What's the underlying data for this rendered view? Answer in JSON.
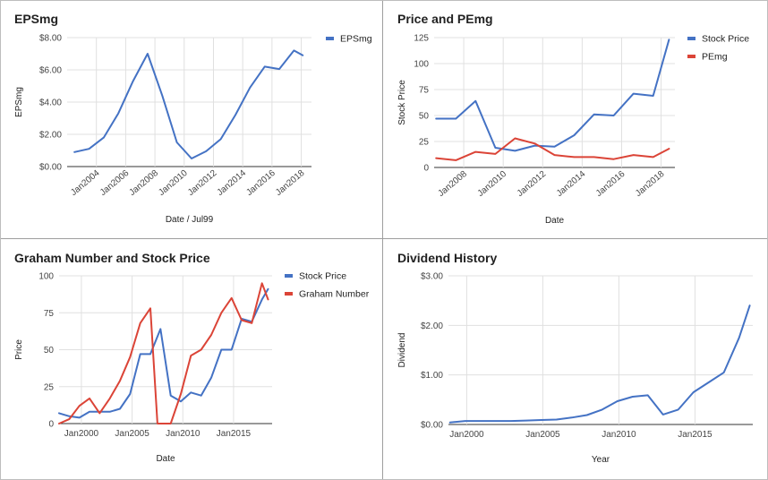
{
  "chart_data": [
    {
      "type": "line",
      "title": "EPSmg",
      "xlabel": "Date / Jul99",
      "ylabel": "EPSmg",
      "y_ticks": [
        "$0.00",
        "$2.00",
        "$4.00",
        "$6.00",
        "$8.00"
      ],
      "ylim": [
        0,
        8
      ],
      "xlim": [
        2002,
        2018.7
      ],
      "x_ticks": [
        "Jan2004",
        "Jan2006",
        "Jan2008",
        "Jan2010",
        "Jan2012",
        "Jan2014",
        "Jan2016",
        "Jan2018"
      ],
      "x_tick_values": [
        2004,
        2006,
        2008,
        2010,
        2012,
        2014,
        2016,
        2018
      ],
      "grid": true,
      "legend": "top-right",
      "series": [
        {
          "name": "EPSmg",
          "color": "#4472C4",
          "x": [
            2002.5,
            2003.5,
            2004.5,
            2005.5,
            2006.5,
            2007.5,
            2008.5,
            2009.5,
            2010.5,
            2011.5,
            2012.5,
            2013.5,
            2014.5,
            2015.5,
            2016.5,
            2017.5,
            2018.1
          ],
          "y": [
            0.9,
            1.1,
            1.8,
            3.3,
            5.3,
            7.0,
            4.4,
            1.5,
            0.5,
            0.95,
            1.7,
            3.2,
            4.9,
            6.2,
            6.05,
            7.2,
            6.9
          ]
        }
      ]
    },
    {
      "type": "line",
      "title": "Price and PEmg",
      "xlabel": "Date",
      "ylabel": "Stock Price",
      "y_ticks": [
        "0",
        "25",
        "50",
        "75",
        "100",
        "125"
      ],
      "ylim": [
        0,
        125
      ],
      "xlim": [
        2006.5,
        2018.7
      ],
      "x_ticks": [
        "Jan2008",
        "Jan2010",
        "Jan2012",
        "Jan2014",
        "Jan2016",
        "Jan2018"
      ],
      "x_tick_values": [
        2008,
        2010,
        2012,
        2014,
        2016,
        2018
      ],
      "grid": true,
      "legend": "top-right",
      "series": [
        {
          "name": "Stock Price",
          "color": "#4472C4",
          "x": [
            2006.6,
            2007.6,
            2008.6,
            2009.6,
            2010.6,
            2011.6,
            2012.6,
            2013.6,
            2014.6,
            2015.6,
            2016.6,
            2017.6,
            2018.4
          ],
          "y": [
            47,
            47,
            64,
            19,
            16,
            21,
            20,
            31,
            51,
            50,
            71,
            69,
            123
          ]
        },
        {
          "name": "PEmg",
          "color": "#DB4437",
          "x": [
            2006.6,
            2007.6,
            2008.6,
            2009.6,
            2010.6,
            2011.6,
            2012.6,
            2013.6,
            2014.6,
            2015.6,
            2016.6,
            2017.6,
            2018.4
          ],
          "y": [
            9,
            7,
            15,
            13,
            28,
            23,
            12,
            10,
            10,
            8,
            12,
            10,
            18
          ]
        }
      ]
    },
    {
      "type": "line",
      "title": "Graham Number and Stock Price",
      "xlabel": "Date",
      "ylabel": "Price",
      "y_ticks": [
        "0",
        "25",
        "50",
        "75",
        "100"
      ],
      "ylim": [
        0,
        100
      ],
      "xlim": [
        1997.8,
        2018.8
      ],
      "x_ticks": [
        "Jan2000",
        "Jan2005",
        "Jan2010",
        "Jan2015"
      ],
      "x_tick_values": [
        2000,
        2005,
        2010,
        2015
      ],
      "grid": true,
      "legend": "top-right",
      "series": [
        {
          "name": "Stock Price",
          "color": "#4472C4",
          "x": [
            1997.8,
            1998.8,
            1999.8,
            2000.8,
            2001.8,
            2002.8,
            2003.8,
            2004.8,
            2005.8,
            2006.8,
            2007.8,
            2008.8,
            2009.8,
            2010.8,
            2011.8,
            2012.8,
            2013.8,
            2014.8,
            2015.8,
            2016.8,
            2017.8,
            2018.4
          ],
          "y": [
            7,
            5,
            4,
            8,
            8,
            8,
            10,
            20,
            47,
            47,
            64,
            19,
            15,
            21,
            19,
            31,
            50,
            50,
            71,
            69,
            84,
            91
          ]
        },
        {
          "name": "Graham Number",
          "color": "#DB4437",
          "x": [
            1997.8,
            1998.8,
            1999.8,
            2000.8,
            2001.8,
            2002.8,
            2003.8,
            2004.8,
            2005.8,
            2006.8,
            2007.5,
            2008.8,
            2009.8,
            2010.8,
            2011.8,
            2012.8,
            2013.8,
            2014.8,
            2015.8,
            2016.8,
            2017.8,
            2018.4
          ],
          "y": [
            0,
            3,
            12,
            17,
            7,
            17,
            29,
            45,
            68,
            78,
            0,
            0,
            20,
            46,
            50,
            60,
            75,
            85,
            70,
            68,
            95,
            84
          ]
        }
      ]
    },
    {
      "type": "line",
      "title": "Dividend History",
      "xlabel": "Year",
      "ylabel": "Dividend",
      "y_ticks": [
        "$0.00",
        "$1.00",
        "$2.00",
        "$3.00"
      ],
      "ylim": [
        0,
        3
      ],
      "xlim": [
        1998.8,
        2018.8
      ],
      "x_ticks": [
        "Jan2000",
        "Jan2005",
        "Jan2010",
        "Jan2015"
      ],
      "x_tick_values": [
        2000,
        2005,
        2010,
        2015
      ],
      "grid": true,
      "legend": "none",
      "series": [
        {
          "name": "",
          "color": "#4472C4",
          "x": [
            1998.9,
            1999.9,
            2000.9,
            2001.9,
            2002.9,
            2003.9,
            2004.9,
            2005.9,
            2006.9,
            2007.9,
            2008.9,
            2009.9,
            2010.9,
            2011.9,
            2012.9,
            2013.9,
            2014.9,
            2015.9,
            2016.9,
            2017.9
          ],
          "y": [
            0.04,
            0.07,
            0.07,
            0.07,
            0.07,
            0.08,
            0.09,
            0.1,
            0.14,
            0.19,
            0.3,
            0.47,
            0.56,
            0.59,
            0.2,
            0.3,
            0.65,
            0.85,
            1.05,
            1.75
          ]
        }
      ]
    }
  ],
  "extra": {
    "dividend_last_point": {
      "x": 2018.6,
      "y": 2.4
    }
  }
}
